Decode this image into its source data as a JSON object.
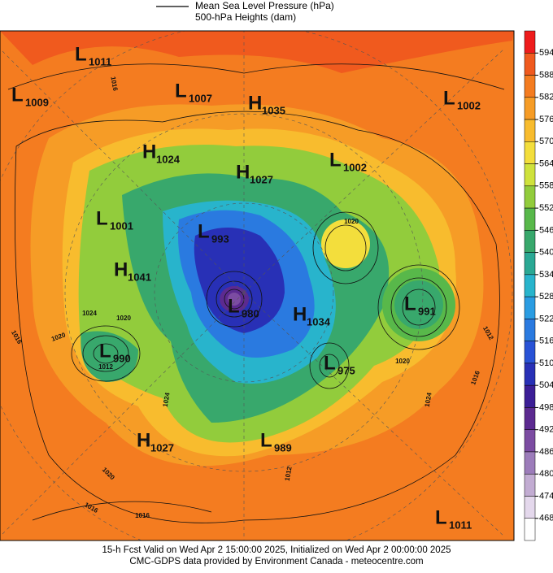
{
  "legend": {
    "line_label": "Mean Sea Level Pressure (hPa)",
    "fill_label": "500-hPa Heights (dam)"
  },
  "centers": [
    {
      "kind": "L",
      "value": "1011"
    },
    {
      "kind": "L",
      "value": "1009"
    },
    {
      "kind": "L",
      "value": "1007"
    },
    {
      "kind": "H",
      "value": "1035"
    },
    {
      "kind": "L",
      "value": "1002"
    },
    {
      "kind": "H",
      "value": "1024"
    },
    {
      "kind": "H",
      "value": "1027"
    },
    {
      "kind": "L",
      "value": "1002"
    },
    {
      "kind": "L",
      "value": "1001"
    },
    {
      "kind": "L",
      "value": "993"
    },
    {
      "kind": "H",
      "value": "1041"
    },
    {
      "kind": "L",
      "value": "980"
    },
    {
      "kind": "H",
      "value": "1034"
    },
    {
      "kind": "L",
      "value": "991"
    },
    {
      "kind": "L",
      "value": "990"
    },
    {
      "kind": "L",
      "value": "975"
    },
    {
      "kind": "H",
      "value": "1027"
    },
    {
      "kind": "L",
      "value": "989"
    },
    {
      "kind": "L",
      "value": "1011"
    }
  ],
  "contour_labels": [
    "1016",
    "1020",
    "1024",
    "1020",
    "1016",
    "1020",
    "1012",
    "1024",
    "1020",
    "1016",
    "1016",
    "1012",
    "1012",
    "1016",
    "1020",
    "1024"
  ],
  "colorbar": {
    "labels": [
      "594",
      "588",
      "582",
      "576",
      "570",
      "564",
      "558",
      "552",
      "546",
      "540",
      "534",
      "528",
      "522",
      "516",
      "510",
      "504",
      "498",
      "492",
      "486",
      "480",
      "474",
      "468"
    ],
    "colors": [
      "#ee1c1c",
      "#f05a1e",
      "#f47c20",
      "#f69c26",
      "#f8bc2e",
      "#f3de3c",
      "#cfe23c",
      "#92cc3c",
      "#58b84a",
      "#38a86c",
      "#2aa894",
      "#28b4cc",
      "#2a9ce2",
      "#2a7ae0",
      "#2852d6",
      "#2830b6",
      "#3c1e96",
      "#5c2a90",
      "#7c4ca2",
      "#9c7cba",
      "#c2acd2",
      "#e4d8ec",
      "#ffffff"
    ]
  },
  "footer": {
    "line1": "15-h Fcst Valid on Wed Apr  2 15:00:00 2025, Initialized on Wed Apr  2 00:00:00 2025",
    "line2": "CMC-GDPS data provided by Environment Canada - meteocentre.com"
  }
}
